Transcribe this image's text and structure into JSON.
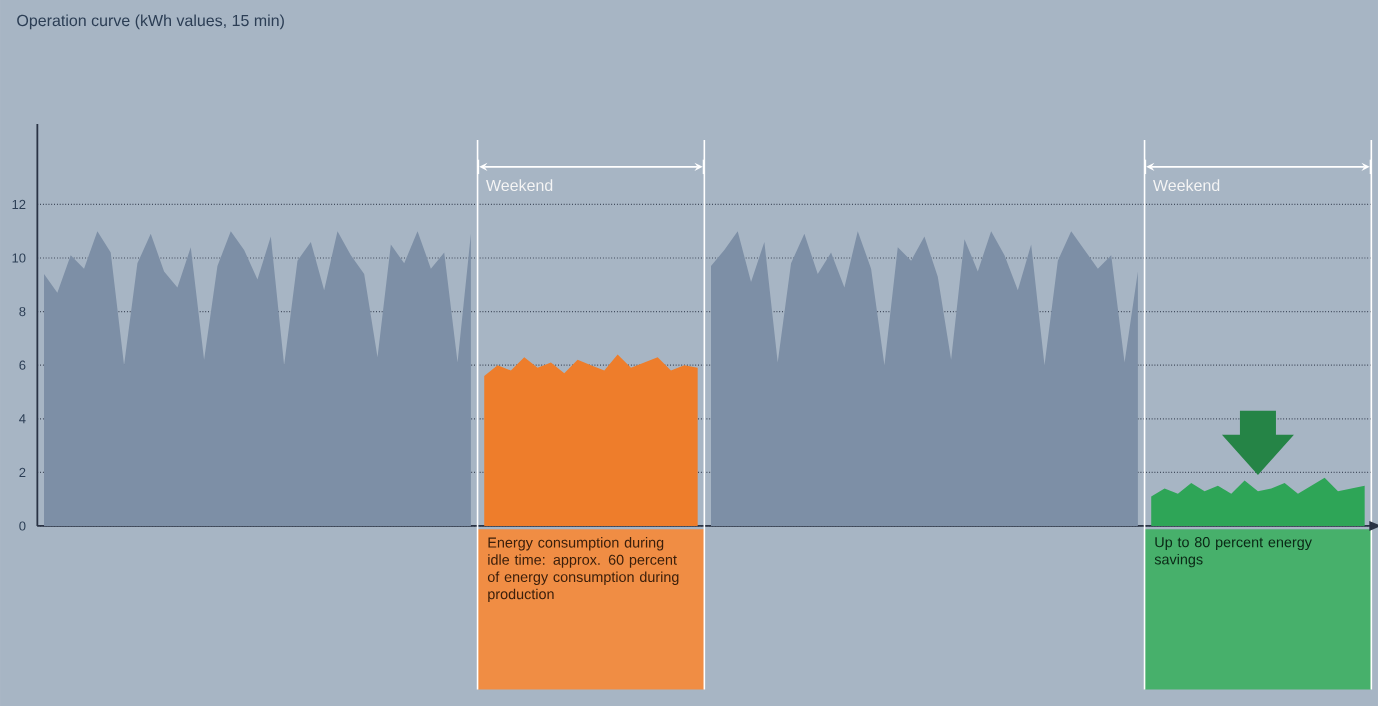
{
  "chart_data": {
    "type": "area",
    "title": "Operation curve (kWh values, 15 min)",
    "categories": [
      null,
      null,
      null,
      null,
      null,
      null,
      null,
      null,
      null,
      null,
      null,
      null,
      null,
      null,
      null,
      null,
      null,
      null,
      null,
      null,
      null,
      null,
      null,
      null,
      null,
      null,
      null,
      null,
      null,
      null,
      null,
      null,
      null,
      null,
      null,
      null,
      null,
      null,
      null,
      null,
      null,
      null,
      null,
      null,
      null,
      null,
      null,
      null,
      null,
      null,
      null,
      null,
      null,
      null,
      null,
      null,
      null,
      null,
      null,
      null,
      null,
      null,
      null,
      null,
      null,
      null,
      null,
      null,
      null,
      null,
      null,
      null,
      null,
      null,
      null,
      null,
      null,
      null,
      null,
      null,
      null,
      null,
      null,
      null,
      null,
      null,
      null,
      null,
      null,
      null,
      null,
      null,
      null,
      null,
      null,
      null,
      null,
      null,
      null,
      null
    ],
    "ylim": [
      0,
      15
    ],
    "yticks": [
      0,
      2,
      4,
      6,
      8,
      10,
      12
    ],
    "grid": "y",
    "tick_labels": "y",
    "series": [
      {
        "color": "#7d8fa6",
        "values": [
          9.4,
          8.7,
          10.1,
          9.6,
          11,
          10.2,
          6,
          9.8,
          10.9,
          9.5,
          8.9,
          10.4,
          6.2,
          9.7,
          11,
          10.3,
          9.2,
          10.8,
          6,
          9.9,
          10.6,
          8.8,
          11,
          10.1,
          9.4,
          6.3,
          10.5,
          9.8,
          11,
          9.6,
          10.2,
          6.1,
          10.9,
          null,
          null,
          null,
          null,
          null,
          null,
          null,
          null,
          null,
          null,
          null,
          null,
          null,
          null,
          null,
          null,
          null,
          null,
          null,
          null,
          null,
          null,
          null,
          null,
          null,
          null,
          null,
          null,
          null,
          null,
          null,
          null,
          null,
          null,
          null,
          null,
          null,
          null,
          null,
          null,
          null,
          null,
          null,
          null,
          null,
          null,
          null,
          null,
          null,
          null,
          null,
          null,
          null,
          null,
          null,
          null,
          null,
          null,
          null,
          null,
          null,
          null,
          null,
          null,
          null,
          null,
          null
        ]
      },
      {
        "color": "#ee7d2b",
        "values": [
          null,
          null,
          null,
          null,
          null,
          null,
          null,
          null,
          null,
          null,
          null,
          null,
          null,
          null,
          null,
          null,
          null,
          null,
          null,
          null,
          null,
          null,
          null,
          null,
          null,
          null,
          null,
          null,
          null,
          null,
          null,
          null,
          null,
          5.6,
          6.0,
          5.8,
          6.3,
          5.9,
          6.1,
          5.7,
          6.2,
          6.0,
          5.8,
          6.4,
          5.9,
          6.1,
          6.3,
          5.8,
          6.0,
          5.9,
          null,
          null,
          null,
          null,
          null,
          null,
          null,
          null,
          null,
          null,
          null,
          null,
          null,
          null,
          null,
          null,
          null,
          null,
          null,
          null,
          null,
          null,
          null,
          null,
          null,
          null,
          null,
          null,
          null,
          null,
          null,
          null,
          null,
          null,
          null,
          null,
          null,
          null,
          null,
          null,
          null,
          null,
          null,
          null,
          null,
          null,
          null,
          null,
          null,
          null
        ]
      },
      {
        "color": "#7d8fa6",
        "values": [
          null,
          null,
          null,
          null,
          null,
          null,
          null,
          null,
          null,
          null,
          null,
          null,
          null,
          null,
          null,
          null,
          null,
          null,
          null,
          null,
          null,
          null,
          null,
          null,
          null,
          null,
          null,
          null,
          null,
          null,
          null,
          null,
          null,
          null,
          null,
          null,
          null,
          null,
          null,
          null,
          null,
          null,
          null,
          null,
          null,
          null,
          null,
          null,
          null,
          null,
          9.7,
          10.3,
          11,
          9.1,
          10.6,
          6.1,
          9.8,
          10.9,
          9.4,
          10.2,
          8.9,
          11,
          9.6,
          6.0,
          10.4,
          9.9,
          10.8,
          9.3,
          6.2,
          10.7,
          9.5,
          11,
          10.1,
          8.8,
          10.5,
          6.0,
          9.9,
          11,
          10.3,
          9.6,
          10.1,
          6.1,
          9.5,
          null,
          null,
          null,
          null,
          null,
          null,
          null,
          null,
          null,
          null,
          null,
          null,
          null,
          null,
          null,
          null,
          null
        ]
      },
      {
        "color": "#2ea557",
        "values": [
          null,
          null,
          null,
          null,
          null,
          null,
          null,
          null,
          null,
          null,
          null,
          null,
          null,
          null,
          null,
          null,
          null,
          null,
          null,
          null,
          null,
          null,
          null,
          null,
          null,
          null,
          null,
          null,
          null,
          null,
          null,
          null,
          null,
          null,
          null,
          null,
          null,
          null,
          null,
          null,
          null,
          null,
          null,
          null,
          null,
          null,
          null,
          null,
          null,
          null,
          null,
          null,
          null,
          null,
          null,
          null,
          null,
          null,
          null,
          null,
          null,
          null,
          null,
          null,
          null,
          null,
          null,
          null,
          null,
          null,
          null,
          null,
          null,
          null,
          null,
          null,
          null,
          null,
          null,
          null,
          null,
          null,
          null,
          1.1,
          1.4,
          1.2,
          1.6,
          1.3,
          1.5,
          1.2,
          1.7,
          1.3,
          1.4,
          1.6,
          1.2,
          1.5,
          1.8,
          1.3,
          1.4,
          1.5
        ]
      }
    ],
    "annotations": [
      "Weekend",
      "Energy consumption during idle time: approx. 60 percent of energy consumption during production",
      "Weekend",
      "Up to 80 percent energy savings"
    ]
  }
}
